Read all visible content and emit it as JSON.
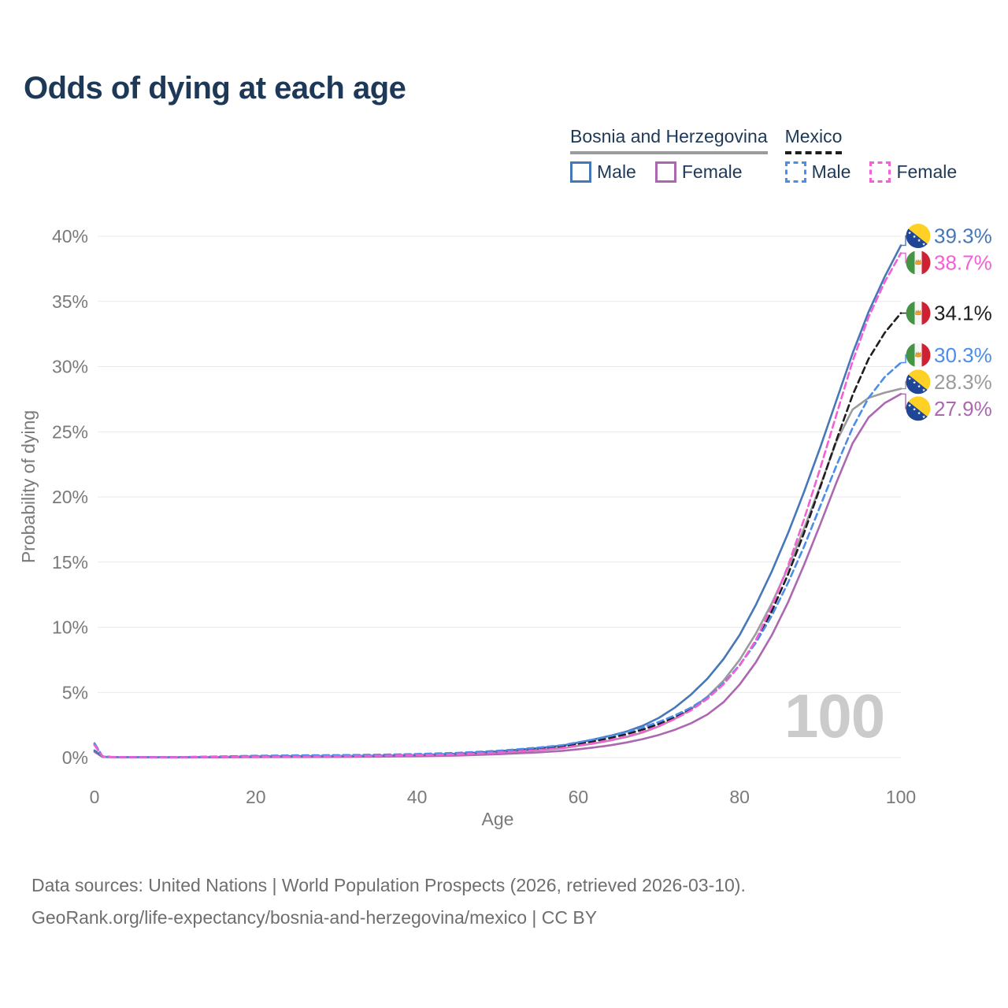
{
  "title": "Odds of dying at each age",
  "watermark": "100",
  "axes": {
    "x_label": "Age",
    "y_label": "Probability of dying",
    "x_ticks": [
      0,
      20,
      40,
      60,
      80,
      100
    ],
    "y_ticks": [
      "0%",
      "5%",
      "10%",
      "15%",
      "20%",
      "25%",
      "30%",
      "35%",
      "40%"
    ]
  },
  "legend": {
    "groups": [
      {
        "label": "Bosnia and Herzegovina",
        "line_style": "solid",
        "line_color": "#9b9b9b",
        "items": [
          {
            "label": "Male",
            "color": "#4677b8",
            "dashed": false
          },
          {
            "label": "Female",
            "color": "#ab68b1",
            "dashed": false
          }
        ]
      },
      {
        "label": "Mexico",
        "line_style": "dashed",
        "line_color": "#1e1e1e",
        "items": [
          {
            "label": "Male",
            "color": "#4b8de8",
            "dashed": true
          },
          {
            "label": "Female",
            "color": "#f45fd4",
            "dashed": true
          }
        ]
      }
    ]
  },
  "footer": {
    "line1": "Data sources: United Nations | World Population Prospects (2026, retrieved 2026-03-10).",
    "line2": "GeoRank.org/life-expectancy/bosnia-and-herzegovina/mexico | CC BY"
  },
  "chart_data": {
    "type": "line",
    "title": "Odds of dying at each age",
    "xlabel": "Age",
    "ylabel": "Probability of dying",
    "xlim": [
      0,
      100
    ],
    "ylim": [
      0,
      40
    ],
    "grid": "horizontal",
    "legend_position": "top-right",
    "x": [
      0,
      1,
      2,
      5,
      10,
      15,
      20,
      25,
      30,
      35,
      40,
      45,
      50,
      55,
      58,
      60,
      62,
      64,
      66,
      68,
      70,
      72,
      74,
      76,
      78,
      80,
      82,
      84,
      86,
      88,
      90,
      92,
      94,
      96,
      98,
      100
    ],
    "series": [
      {
        "id": "bih-both",
        "name": "Bosnia and Herzegovina Both sexes",
        "color": "#9b9b9b",
        "dashed": false,
        "flag": "ba",
        "end_label": {
          "text": "28.3%",
          "color": "#9b9b9b"
        },
        "values": [
          0.5,
          0.055,
          0.035,
          0.025,
          0.018,
          0.03,
          0.055,
          0.07,
          0.08,
          0.1,
          0.145,
          0.225,
          0.365,
          0.56,
          0.72,
          0.9,
          1.09,
          1.32,
          1.58,
          1.93,
          2.4,
          2.99,
          3.74,
          4.67,
          5.9,
          7.5,
          9.5,
          11.85,
          14.55,
          17.6,
          20.85,
          24.25,
          26.7,
          27.6,
          28.0,
          28.3
        ]
      },
      {
        "id": "bih-female",
        "name": "Bosnia and Herzegovina Female",
        "color": "#ab68b1",
        "dashed": false,
        "flag": "ba",
        "end_label": {
          "text": "27.9%",
          "color": "#ab68b1"
        },
        "values": [
          0.45,
          0.05,
          0.03,
          0.02,
          0.015,
          0.02,
          0.03,
          0.04,
          0.05,
          0.07,
          0.1,
          0.16,
          0.26,
          0.4,
          0.52,
          0.64,
          0.78,
          0.95,
          1.16,
          1.42,
          1.74,
          2.14,
          2.64,
          3.3,
          4.25,
          5.6,
          7.3,
          9.4,
          11.9,
          14.8,
          17.9,
          21.1,
          24.1,
          26.1,
          27.2,
          27.9
        ]
      },
      {
        "id": "bih-male",
        "name": "Bosnia and Herzegovina Male",
        "color": "#4677b8",
        "dashed": false,
        "flag": "ba",
        "end_label": {
          "text": "39.3%",
          "color": "#4677b8"
        },
        "values": [
          0.55,
          0.06,
          0.04,
          0.03,
          0.02,
          0.04,
          0.08,
          0.1,
          0.11,
          0.14,
          0.19,
          0.29,
          0.47,
          0.72,
          0.92,
          1.15,
          1.4,
          1.68,
          2.0,
          2.45,
          3.05,
          3.85,
          4.85,
          6.05,
          7.55,
          9.4,
          11.7,
          14.3,
          17.2,
          20.4,
          23.8,
          27.4,
          31.0,
          34.2,
          36.9,
          39.3
        ]
      },
      {
        "id": "mex-both",
        "name": "Mexico Both sexes",
        "color": "#1e1e1e",
        "dashed": true,
        "flag": "mx",
        "end_label": {
          "text": "34.1%",
          "color": "#1e1e1e"
        },
        "values": [
          1.02,
          0.085,
          0.048,
          0.032,
          0.028,
          0.06,
          0.1,
          0.12,
          0.14,
          0.17,
          0.22,
          0.3,
          0.45,
          0.67,
          0.85,
          1.05,
          1.26,
          1.51,
          1.8,
          2.15,
          2.58,
          3.1,
          3.74,
          4.56,
          5.66,
          7.08,
          8.9,
          11.25,
          14.05,
          17.25,
          20.75,
          24.35,
          27.8,
          30.6,
          32.6,
          34.1
        ]
      },
      {
        "id": "mex-male",
        "name": "Mexico Male",
        "color": "#4b8de8",
        "dashed": true,
        "flag": "mx",
        "end_label": {
          "text": "30.3%",
          "color": "#4b8de8"
        },
        "values": [
          1.1,
          0.09,
          0.05,
          0.035,
          0.03,
          0.08,
          0.14,
          0.17,
          0.19,
          0.22,
          0.27,
          0.36,
          0.52,
          0.76,
          0.95,
          1.17,
          1.4,
          1.66,
          1.96,
          2.32,
          2.74,
          3.24,
          3.84,
          4.62,
          5.7,
          7.1,
          8.8,
          10.9,
          13.4,
          16.2,
          19.3,
          22.4,
          25.3,
          27.6,
          29.2,
          30.3
        ]
      },
      {
        "id": "mex-female",
        "name": "Mexico Female",
        "color": "#f45fd4",
        "dashed": true,
        "flag": "mx",
        "end_label": {
          "text": "38.7%",
          "color": "#f45fd4"
        },
        "values": [
          0.95,
          0.08,
          0.045,
          0.03,
          0.025,
          0.04,
          0.06,
          0.08,
          0.1,
          0.13,
          0.18,
          0.25,
          0.38,
          0.58,
          0.74,
          0.92,
          1.12,
          1.35,
          1.62,
          1.97,
          2.42,
          2.97,
          3.64,
          4.5,
          5.62,
          7.05,
          9.0,
          11.6,
          14.7,
          18.3,
          22.2,
          26.3,
          30.4,
          33.8,
          36.5,
          38.7
        ]
      }
    ]
  }
}
